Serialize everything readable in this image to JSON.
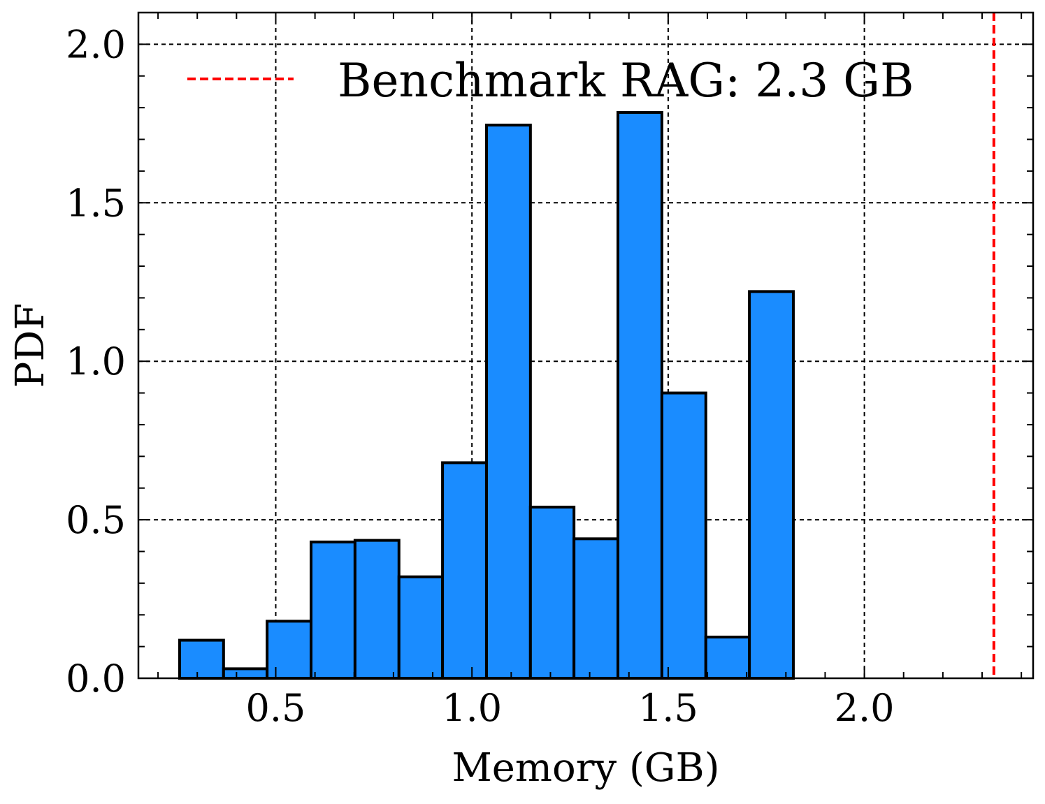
{
  "chart_data": {
    "type": "bar",
    "title": "",
    "xlabel": "Memory (GB)",
    "ylabel": "PDF",
    "xlim": [
      0.15,
      2.43
    ],
    "ylim": [
      0.0,
      2.1
    ],
    "grid": true,
    "x_ticks": [
      0.5,
      1.0,
      1.5,
      2.0
    ],
    "x_tick_labels": [
      "0.5",
      "1.0",
      "1.5",
      "2.0"
    ],
    "y_ticks": [
      0.0,
      0.5,
      1.0,
      1.5,
      2.0
    ],
    "y_tick_labels": [
      "0.0",
      "0.5",
      "1.0",
      "1.5",
      "2.0"
    ],
    "bin_edges": [
      0.255,
      0.367,
      0.478,
      0.59,
      0.702,
      0.814,
      0.925,
      1.037,
      1.149,
      1.26,
      1.372,
      1.484,
      1.596,
      1.707,
      1.819
    ],
    "values": [
      0.12,
      0.03,
      0.18,
      0.43,
      0.435,
      0.32,
      0.68,
      1.745,
      0.54,
      0.44,
      1.785,
      0.9,
      0.13,
      1.22
    ],
    "color": "#1a8cff",
    "reference_line": {
      "x": 2.33,
      "color": "#ff0000",
      "label": "Benchmark RAG: 2.3 GB"
    },
    "legend_position": "top-left"
  }
}
